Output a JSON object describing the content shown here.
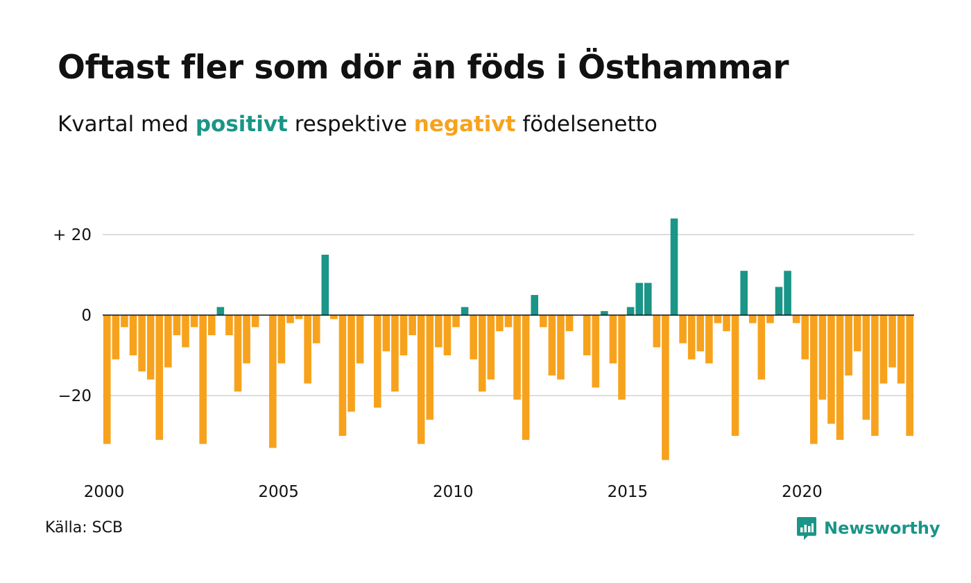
{
  "title": "Oftast fler som dör än föds i Östhammar",
  "subtitle": {
    "part1": "Kvartal med ",
    "positive_word": "positivt",
    "part2": " respektive ",
    "negative_word": "negativt",
    "part3": " födelsenetto"
  },
  "source": "Källa: SCB",
  "logo": {
    "text": "Newsworthy",
    "icon": "newsworthy-logo-icon"
  },
  "colors": {
    "positive": "#1a9587",
    "negative": "#f7a21d",
    "grid": "#dddddd",
    "axis": "#111111",
    "text": "#111111"
  },
  "chart_data": {
    "type": "bar",
    "x_start": "2000 Q1",
    "x_ticks": [
      "2000",
      "2005",
      "2010",
      "2015",
      "2020"
    ],
    "y_ticks": [
      {
        "value": 20,
        "label": "+ 20"
      },
      {
        "value": 0,
        "label": "0"
      },
      {
        "value": -20,
        "label": "−20"
      }
    ],
    "ylim": [
      -36,
      24
    ],
    "grid": true,
    "values": [
      -32,
      -11,
      -3,
      -10,
      -14,
      -16,
      -31,
      -13,
      -5,
      -8,
      -3,
      -32,
      -5,
      2,
      -5,
      -19,
      -12,
      -3,
      0,
      -33,
      -12,
      -2,
      -1,
      -17,
      -7,
      15,
      -1,
      -30,
      -24,
      -12,
      0,
      -23,
      -9,
      -19,
      -10,
      -5,
      -32,
      -26,
      -8,
      -10,
      -3,
      2,
      -11,
      -19,
      -16,
      -4,
      -3,
      -21,
      -31,
      5,
      -3,
      -15,
      -16,
      -4,
      0,
      -10,
      -18,
      1,
      -12,
      -21,
      2,
      8,
      8,
      -8,
      -36,
      24,
      -7,
      -11,
      -9,
      -12,
      -2,
      -4,
      -30,
      11,
      -2,
      -16,
      -2,
      7,
      11,
      -2,
      -11,
      -32,
      -21,
      -27,
      -31,
      -15,
      -9,
      -26,
      -30,
      -17,
      -13,
      -17,
      -30
    ]
  }
}
